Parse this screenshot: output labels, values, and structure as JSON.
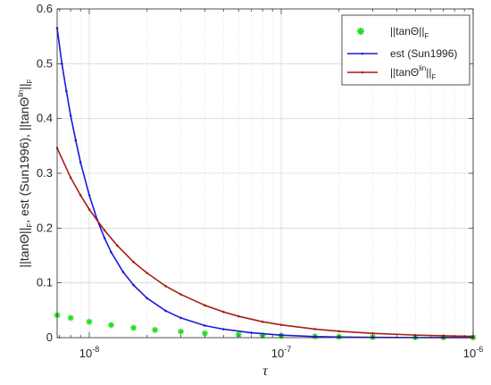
{
  "chart_data": {
    "type": "line",
    "xscale": "log",
    "xlim": [
      6.8e-09,
      1e-06
    ],
    "ylim": [
      0,
      0.6
    ],
    "grid": true,
    "xlabel": "τ",
    "ylabel": "||tanΘ||F, est (Sun1996), ||tanΘlin||F",
    "yticks": [
      "0",
      "0.1",
      "0.2",
      "0.3",
      "0.4",
      "0.5",
      "0.6"
    ],
    "xticks": [
      {
        "base": "10",
        "exp": "-8"
      },
      {
        "base": "10",
        "exp": "-7"
      },
      {
        "base": "10",
        "exp": "-6"
      }
    ],
    "legend_position": "top-right",
    "series": [
      {
        "name": "||tanΘ||F",
        "color": "#22dd22",
        "marker": "asterisk",
        "x": [
          6.8e-09,
          8e-09,
          1e-08,
          1.3e-08,
          1.7e-08,
          2.2e-08,
          3e-08,
          4e-08,
          6e-08,
          8e-08,
          1e-07,
          1.5e-07,
          2e-07,
          3e-07,
          5e-07,
          7e-07,
          1e-06
        ],
        "y": [
          0.041,
          0.036,
          0.029,
          0.023,
          0.018,
          0.014,
          0.011,
          0.008,
          0.0055,
          0.0042,
          0.0034,
          0.0023,
          0.0017,
          0.0011,
          0.0007,
          0.0005,
          0.0003
        ]
      },
      {
        "name": "est (Sun1996)",
        "color": "#1a1ad6",
        "marker": "dot",
        "x": [
          6.8e-09,
          7.2e-09,
          7.6e-09,
          8e-09,
          8.5e-09,
          9e-09,
          1e-08,
          1.1e-08,
          1.2e-08,
          1.3e-08,
          1.5e-08,
          1.7e-08,
          2e-08,
          2.5e-08,
          3e-08,
          4e-08,
          5e-08,
          7e-08,
          1e-07,
          1.5e-07,
          2e-07,
          3e-07,
          5e-07,
          7e-07,
          1e-06
        ],
        "y": [
          0.565,
          0.5,
          0.45,
          0.405,
          0.36,
          0.32,
          0.26,
          0.215,
          0.182,
          0.156,
          0.12,
          0.096,
          0.072,
          0.049,
          0.036,
          0.022,
          0.0155,
          0.0088,
          0.0046,
          0.002,
          0.0012,
          0.0005,
          0.0002,
          0.0001,
          5e-05
        ]
      },
      {
        "name": "||tanΘlin||F",
        "color": "#a51d14",
        "marker": "dot",
        "x": [
          6.8e-09,
          8e-09,
          9e-09,
          1e-08,
          1.2e-08,
          1.4e-08,
          1.7e-08,
          2e-08,
          2.5e-08,
          3e-08,
          4e-08,
          5e-08,
          6e-08,
          8e-08,
          1e-07,
          1.5e-07,
          2e-07,
          3e-07,
          5e-07,
          7e-07,
          1e-06
        ],
        "y": [
          0.346,
          0.292,
          0.26,
          0.234,
          0.196,
          0.168,
          0.138,
          0.118,
          0.094,
          0.079,
          0.059,
          0.047,
          0.039,
          0.029,
          0.0234,
          0.0156,
          0.0117,
          0.0078,
          0.0047,
          0.0034,
          0.0023
        ]
      }
    ]
  }
}
